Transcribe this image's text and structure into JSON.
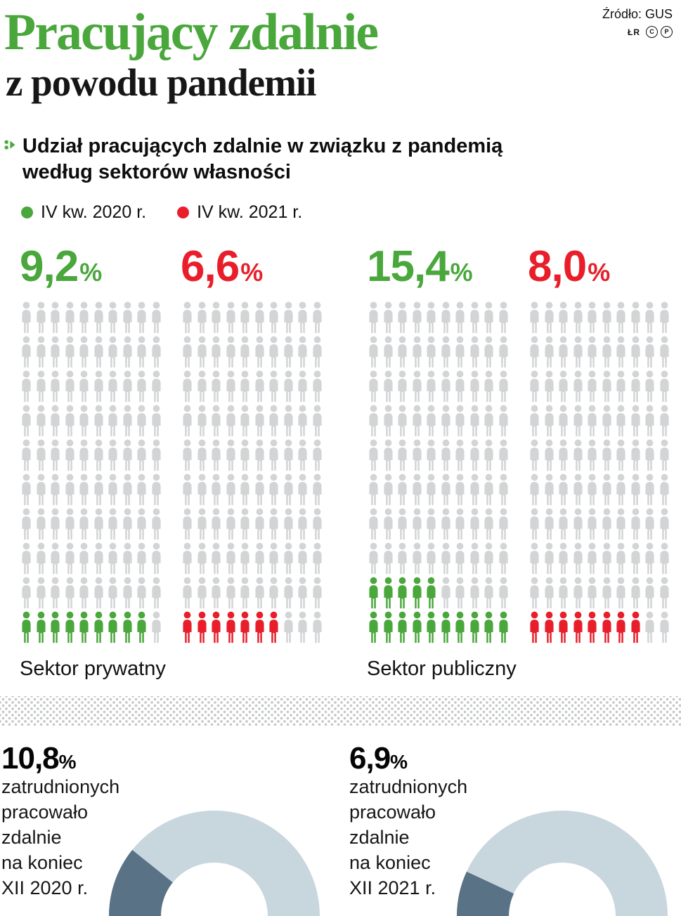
{
  "source": {
    "label": "Źródło: GUS",
    "credit": "ŁR",
    "icon_c": "C",
    "icon_p": "P"
  },
  "title": {
    "line1": "Pracujący zdalnie",
    "line2": "z powodu pandemii"
  },
  "subtitle": {
    "line1": "Udział pracujących zdalnie w związku z pandemią",
    "line2": "według sektorów własności"
  },
  "legend": [
    {
      "label": "IV kw. 2020 r.",
      "color_key": "green"
    },
    {
      "label": "IV kw. 2021 r.",
      "color_key": "red"
    }
  ],
  "labels": {
    "percent": "%"
  },
  "colors": {
    "green": "#4aa73c",
    "red": "#e81f2a",
    "gray": "#d2d4d5",
    "donut_light": "#c8d6de",
    "donut_dark": "#5a7285",
    "ink": "#111111"
  },
  "chart_data": [
    {
      "type": "pictogram",
      "title": "Udział pracujących zdalnie w związku z pandemią według sektorów własności",
      "unit": "%",
      "icons_per_grid": 100,
      "groups": [
        {
          "sector": "Sektor prywatny",
          "series": [
            {
              "name": "IV kw. 2020 r.",
              "value": 9.2,
              "display": "9,2",
              "color_key": "green"
            },
            {
              "name": "IV kw. 2021 r.",
              "value": 6.6,
              "display": "6,6",
              "color_key": "red"
            }
          ]
        },
        {
          "sector": "Sektor publiczny",
          "series": [
            {
              "name": "IV kw. 2020 r.",
              "value": 15.4,
              "display": "15,4",
              "color_key": "green"
            },
            {
              "name": "IV kw. 2021 r.",
              "value": 8.0,
              "display": "8,0",
              "color_key": "red"
            }
          ]
        }
      ]
    },
    {
      "type": "donut",
      "value": 10.8,
      "display": "10,8",
      "caption_lines": [
        "zatrudnionych",
        "pracowało",
        "zdalnie",
        "na koniec",
        "XII 2020 r."
      ]
    },
    {
      "type": "donut",
      "value": 6.9,
      "display": "6,9",
      "caption_lines": [
        "zatrudnionych",
        "pracowało",
        "zdalnie",
        "na koniec",
        "XII 2021 r."
      ]
    }
  ]
}
